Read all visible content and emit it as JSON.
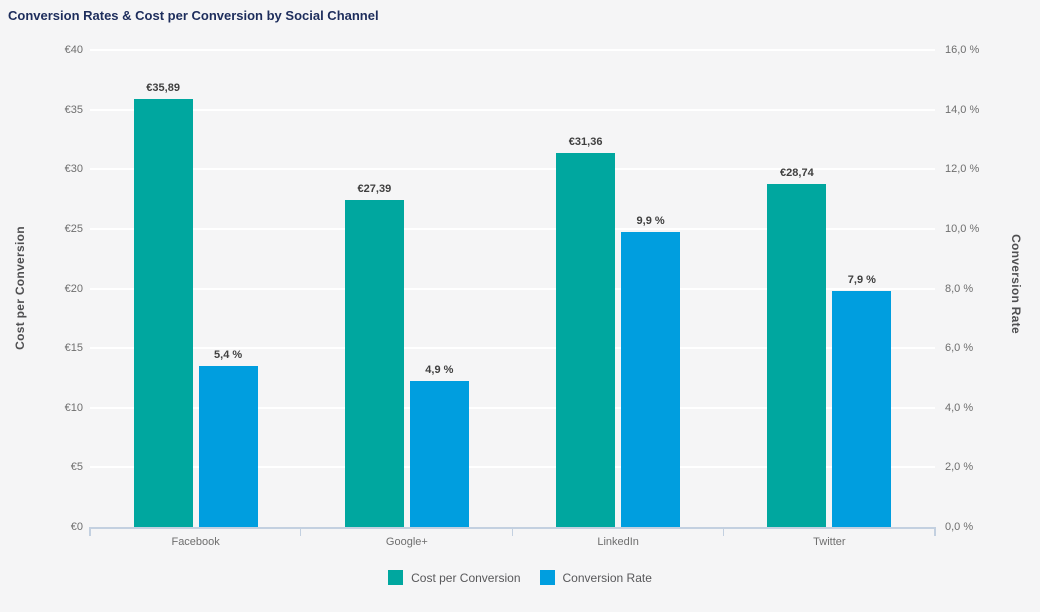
{
  "chart_data": {
    "type": "bar",
    "title": "Conversion Rates & Cost per Conversion by Social Channel",
    "categories": [
      "Facebook",
      "Google+",
      "LinkedIn",
      "Twitter"
    ],
    "series": [
      {
        "name": "Cost per Conversion",
        "axis": "left",
        "color": "#00a79f",
        "values": [
          35.89,
          27.39,
          31.36,
          28.74
        ],
        "value_labels": [
          "€35,89",
          "€27,39",
          "€31,36",
          "€28,74"
        ]
      },
      {
        "name": "Conversion Rate",
        "axis": "right",
        "color": "#009edf",
        "values": [
          5.4,
          4.9,
          9.9,
          7.9
        ],
        "value_labels": [
          "5,4 %",
          "4,9 %",
          "9,9 %",
          "7,9 %"
        ]
      }
    ],
    "left_axis": {
      "label": "Cost per Conversion",
      "min": 0,
      "max": 40,
      "step": 5,
      "ticks": [
        "€0",
        "€5",
        "€10",
        "€15",
        "€20",
        "€25",
        "€30",
        "€35",
        "€40"
      ]
    },
    "right_axis": {
      "label": "Conversion Rate",
      "min": 0,
      "max": 16,
      "step": 2,
      "ticks": [
        "0,0 %",
        "2,0 %",
        "4,0 %",
        "6,0 %",
        "8,0 %",
        "10,0 %",
        "12,0 %",
        "14,0 %",
        "16,0 %"
      ]
    },
    "grid": true,
    "gridline_color": "#ffffff",
    "axis_line_color": "#c3d0e0",
    "background_color": "#f5f5f6",
    "title_color": "#1d2d5c",
    "legend_position": "bottom"
  }
}
